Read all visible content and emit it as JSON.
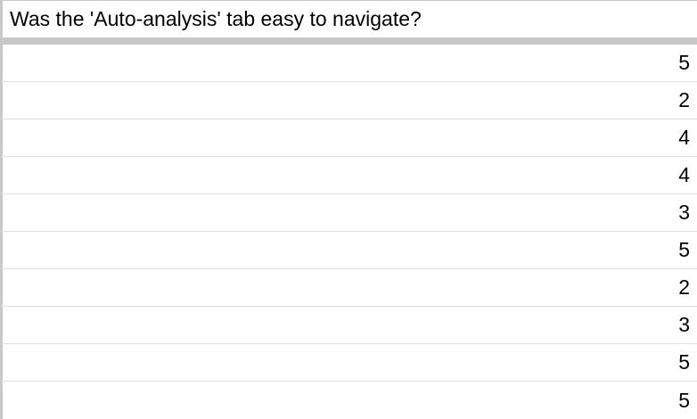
{
  "sheet": {
    "header": "Was the 'Auto-analysis' tab easy to navigate?",
    "values": [
      "5",
      "2",
      "4",
      "4",
      "3",
      "5",
      "2",
      "3",
      "5",
      "5"
    ]
  }
}
